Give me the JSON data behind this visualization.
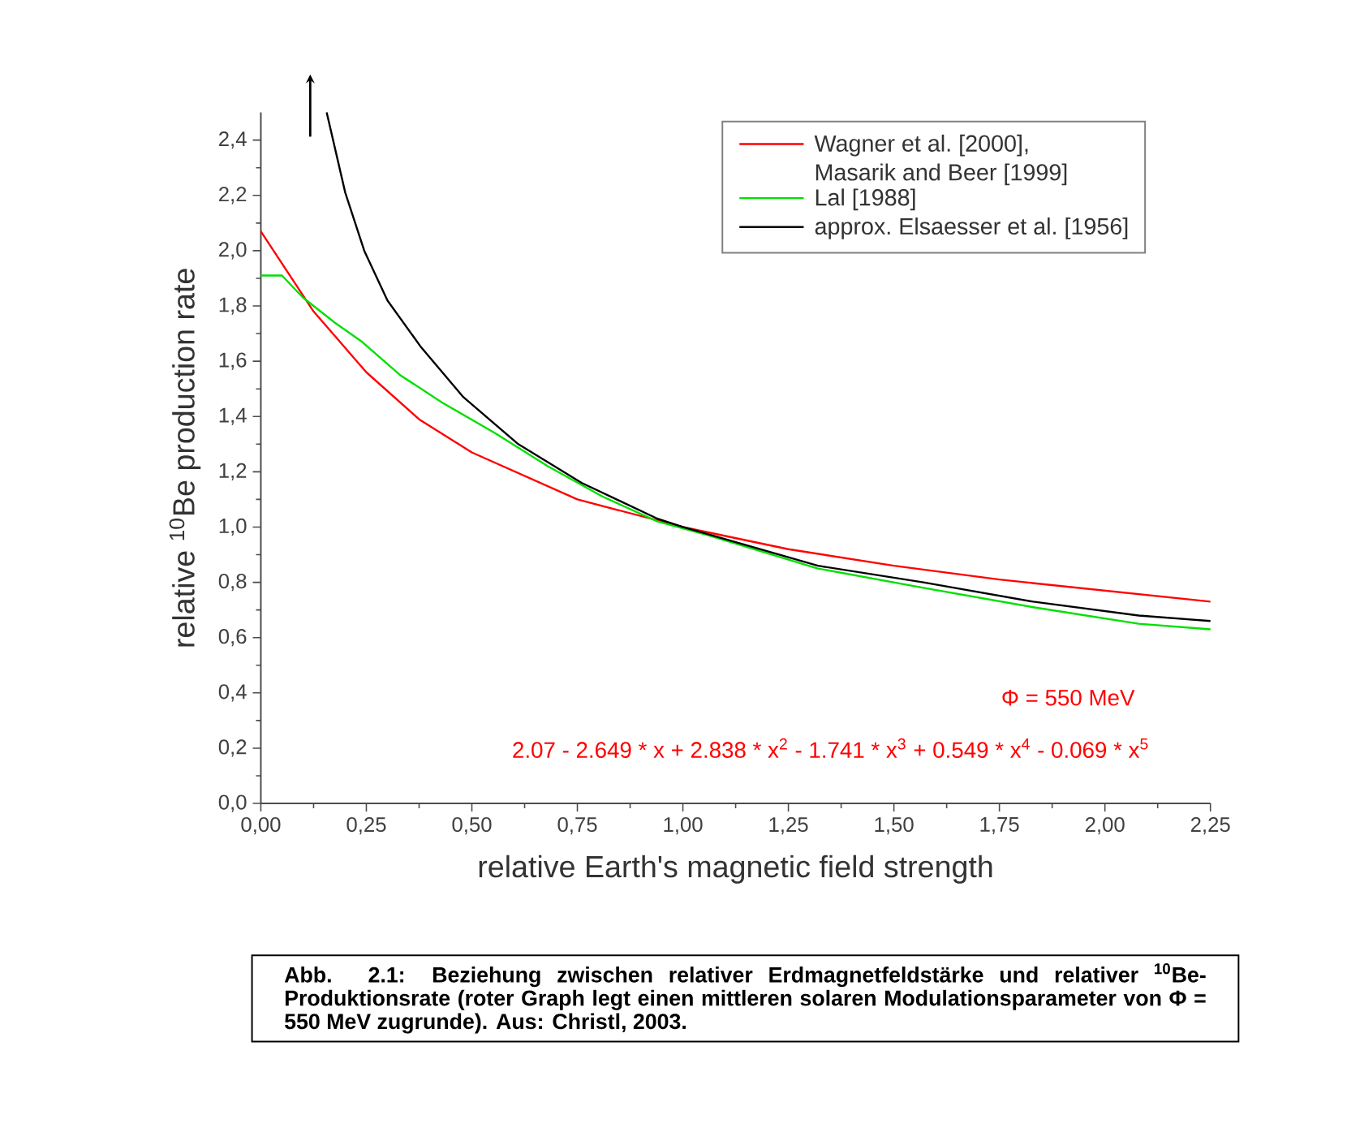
{
  "chart_data": {
    "type": "line",
    "xlabel": "relative Earth's magnetic field strength",
    "ylabel": "relative $^{10}$Be production rate",
    "xlim": [
      0,
      2.25
    ],
    "ylim": [
      0,
      2.5
    ],
    "xticks": [
      {
        "value": 0,
        "label": "0,00"
      },
      {
        "value": 0.25,
        "label": "0,25"
      },
      {
        "value": 0.5,
        "label": "0,50"
      },
      {
        "value": 0.75,
        "label": "0,75"
      },
      {
        "value": 1,
        "label": "1,00"
      },
      {
        "value": 1.25,
        "label": "1,25"
      },
      {
        "value": 1.5,
        "label": "1,50"
      },
      {
        "value": 1.75,
        "label": "1,75"
      },
      {
        "value": 2,
        "label": "2,00"
      },
      {
        "value": 2.25,
        "label": "2,25"
      }
    ],
    "yticks": [
      {
        "value": 0,
        "label": "0,0"
      },
      {
        "value": 0.2,
        "label": "0,2"
      },
      {
        "value": 0.4,
        "label": "0,4"
      },
      {
        "value": 0.6,
        "label": "0,6"
      },
      {
        "value": 0.8,
        "label": "0,8"
      },
      {
        "value": 1,
        "label": "1,0"
      },
      {
        "value": 1.2,
        "label": "1,2"
      },
      {
        "value": 1.4,
        "label": "1,4"
      },
      {
        "value": 1.6,
        "label": "1,6"
      },
      {
        "value": 1.8,
        "label": "1,8"
      },
      {
        "value": 2,
        "label": "2,0"
      },
      {
        "value": 2.2,
        "label": "2,2"
      },
      {
        "value": 2.4,
        "label": "2,4"
      }
    ],
    "legend": "top right",
    "grid": false,
    "marker": "none",
    "line_style": "solid",
    "series": [
      {
        "name": "Wagner et al. [2000], Masarik and Beer [1999]",
        "color": "#ff0000",
        "x": [
          0,
          0.125,
          0.25,
          0.375,
          0.5,
          0.75,
          1,
          1.25,
          1.5,
          1.75,
          2,
          2.25
        ],
        "values": [
          2.07,
          1.78,
          1.56,
          1.39,
          1.27,
          1.1,
          1.0,
          0.92,
          0.86,
          0.81,
          0.77,
          0.73
        ]
      },
      {
        "name": "Lal [1988]",
        "color": "#00e000",
        "x": [
          0,
          0.05,
          0.1,
          0.175,
          0.24,
          0.33,
          0.43,
          0.555,
          0.68,
          0.81,
          0.94,
          1.06,
          1.32,
          1.57,
          1.83,
          2.08,
          2.25
        ],
        "values": [
          1.91,
          1.91,
          1.83,
          1.74,
          1.67,
          1.55,
          1.45,
          1.34,
          1.22,
          1.11,
          1.02,
          0.97,
          0.85,
          0.78,
          0.71,
          0.65,
          0.63
        ]
      },
      {
        "name": "approx. Elsaesser et al. [1956]",
        "color": "#000000",
        "x": [
          0.156,
          0.2,
          0.245,
          0.3,
          0.38,
          0.48,
          0.61,
          0.76,
          0.94,
          1.0,
          1.32,
          1.57,
          1.83,
          2.08,
          2.25
        ],
        "values": [
          2.5,
          2.21,
          2.0,
          1.82,
          1.65,
          1.47,
          1.3,
          1.16,
          1.03,
          1.0,
          0.86,
          0.8,
          0.73,
          0.68,
          0.66
        ]
      }
    ],
    "annotations": [
      "Φ = 550 MeV",
      "2.07 - 2.649 * x + 2.838 * x$^{2}$ - 1.741 * x$^{3}$ + 0.549 * x$^{4}$ - 0.069 * x$^{5}$",
      "Abb. 2.1: Beziehung zwischen relativer Erdmagnetfeldstärke und relativer $^{10}$Be-Produktionsrate (roter Graph legt einen mittleren solaren Modulationsparameter von Φ = 550 MeV zugrunde). Aus: Christl, 2003."
    ]
  }
}
